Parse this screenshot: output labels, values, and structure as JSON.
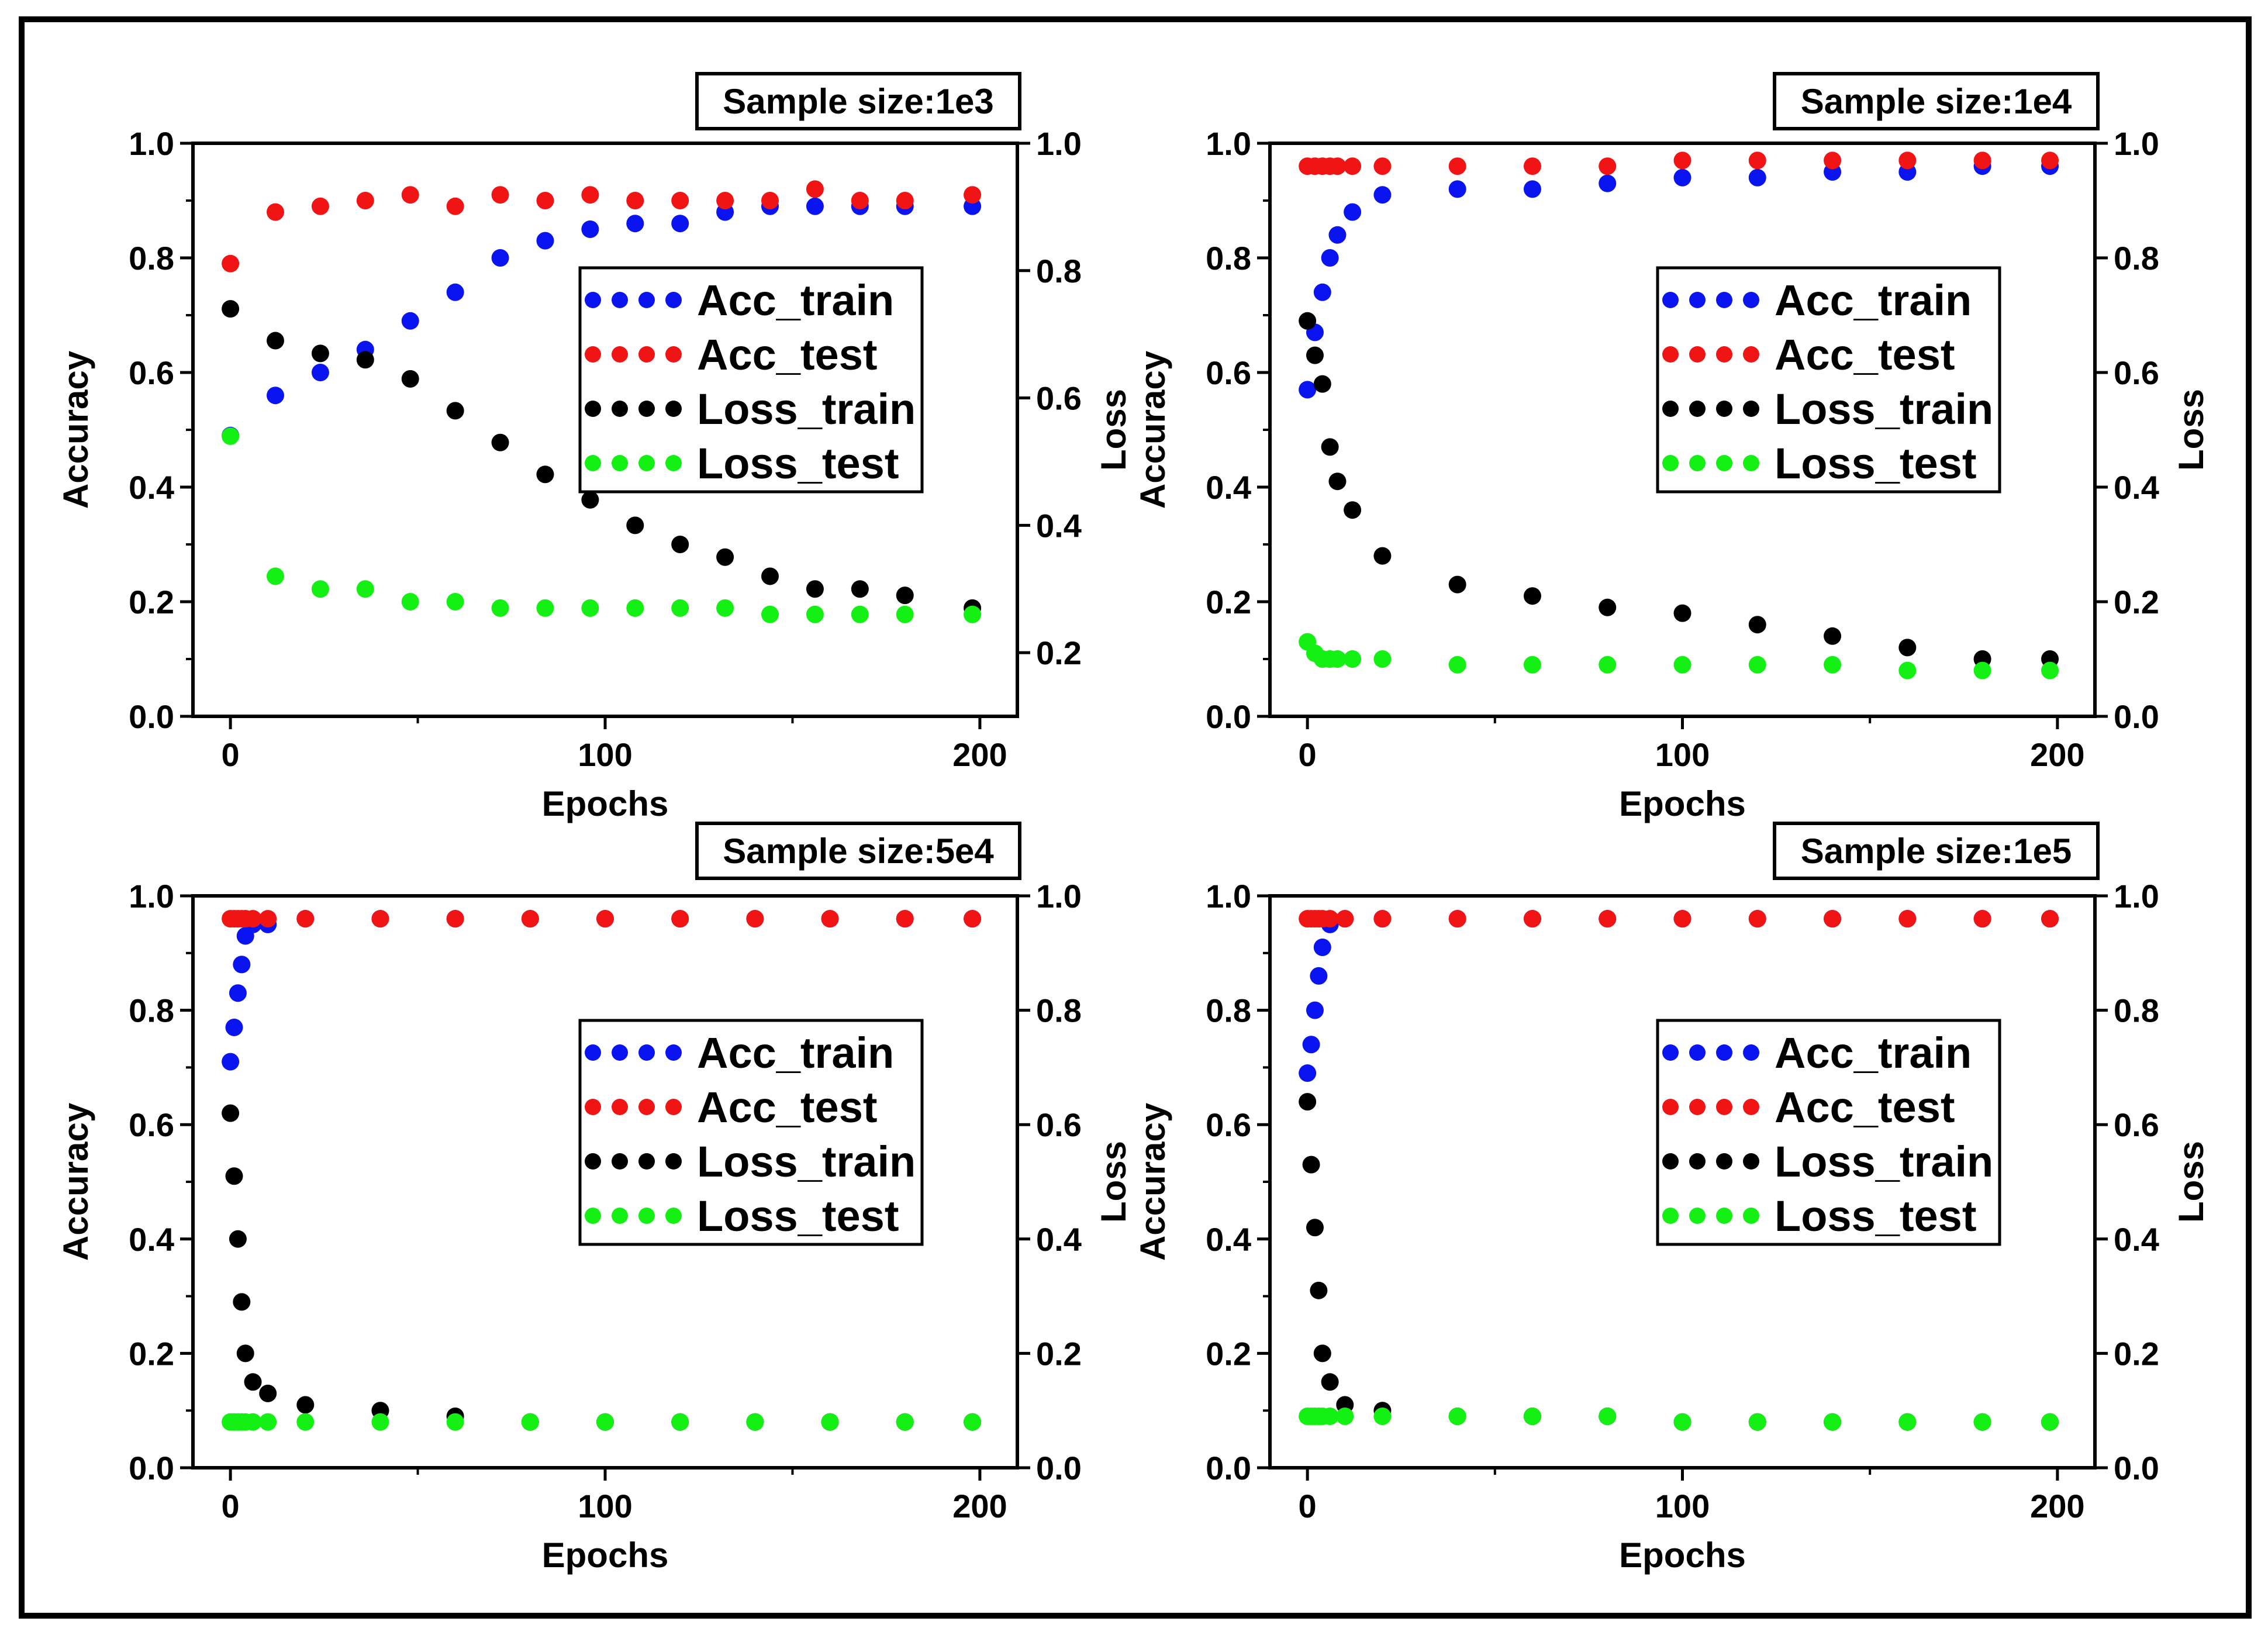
{
  "colors": {
    "acc_train": "#0a14f0",
    "acc_test": "#f01414",
    "loss_train": "#000000",
    "loss_test": "#14f014"
  },
  "chart_data": [
    {
      "type": "scatter",
      "title": "Sample size:1e3",
      "xlabel": "Epochs",
      "ylabel": "Accuracy",
      "y2label": "Loss",
      "xlim": [
        -10,
        210
      ],
      "ylim": [
        0,
        1.0
      ],
      "y2lim": [
        0.1,
        1.0
      ],
      "xticks": [
        0,
        100,
        200
      ],
      "yticks": [
        0.0,
        0.2,
        0.4,
        0.6,
        0.8,
        1.0
      ],
      "y2ticks": [
        0.2,
        0.4,
        0.6,
        0.8,
        1.0
      ],
      "xtick_labels": [
        "0",
        "100",
        "200"
      ],
      "ytick_labels": [
        "0.0",
        "0.2",
        "0.4",
        "0.6",
        "0.8",
        "1.0"
      ],
      "y2tick_labels": [
        "0.2",
        "0.4",
        "0.6",
        "0.8",
        "1.0"
      ],
      "legend_position": "center-right",
      "legend": [
        "Acc_train",
        "Acc_test",
        "Loss_train",
        "Loss_test"
      ],
      "x": [
        0,
        12,
        24,
        36,
        48,
        60,
        72,
        84,
        96,
        108,
        120,
        132,
        144,
        156,
        168,
        180,
        198
      ],
      "series": [
        {
          "name": "Acc_train",
          "axis": "left",
          "color_key": "acc_train",
          "values": [
            0.49,
            0.56,
            0.6,
            0.64,
            0.69,
            0.74,
            0.8,
            0.83,
            0.85,
            0.86,
            0.86,
            0.88,
            0.89,
            0.89,
            0.89,
            0.89,
            0.89
          ]
        },
        {
          "name": "Acc_test",
          "axis": "left",
          "color_key": "acc_test",
          "values": [
            0.79,
            0.88,
            0.89,
            0.9,
            0.91,
            0.89,
            0.91,
            0.9,
            0.91,
            0.9,
            0.9,
            0.9,
            0.9,
            0.92,
            0.9,
            0.9,
            0.91
          ]
        },
        {
          "name": "Loss_train",
          "axis": "right",
          "color_key": "loss_train",
          "values": [
            0.74,
            0.69,
            0.67,
            0.66,
            0.63,
            0.58,
            0.53,
            0.48,
            0.44,
            0.4,
            0.37,
            0.35,
            0.32,
            0.3,
            0.3,
            0.29,
            0.27
          ]
        },
        {
          "name": "Loss_test",
          "axis": "right",
          "color_key": "loss_test",
          "values": [
            0.54,
            0.32,
            0.3,
            0.3,
            0.28,
            0.28,
            0.27,
            0.27,
            0.27,
            0.27,
            0.27,
            0.27,
            0.26,
            0.26,
            0.26,
            0.26,
            0.26
          ]
        }
      ]
    },
    {
      "type": "scatter",
      "title": "Sample size:1e4",
      "xlabel": "Epochs",
      "ylabel": "Accuracy",
      "y2label": "Loss",
      "xlim": [
        -10,
        210
      ],
      "ylim": [
        0,
        1.0
      ],
      "y2lim": [
        0.0,
        1.0
      ],
      "xticks": [
        0,
        100,
        200
      ],
      "yticks": [
        0.0,
        0.2,
        0.4,
        0.6,
        0.8,
        1.0
      ],
      "y2ticks": [
        0.0,
        0.2,
        0.4,
        0.6,
        0.8,
        1.0
      ],
      "xtick_labels": [
        "0",
        "100",
        "200"
      ],
      "ytick_labels": [
        "0.0",
        "0.2",
        "0.4",
        "0.6",
        "0.8",
        "1.0"
      ],
      "y2tick_labels": [
        "0.0",
        "0.2",
        "0.4",
        "0.6",
        "0.8",
        "1.0"
      ],
      "legend_position": "center-right",
      "legend": [
        "Acc_train",
        "Acc_test",
        "Loss_train",
        "Loss_test"
      ],
      "x": [
        0,
        2,
        4,
        6,
        8,
        12,
        20,
        40,
        60,
        80,
        100,
        120,
        140,
        160,
        180,
        198
      ],
      "series": [
        {
          "name": "Acc_train",
          "axis": "left",
          "color_key": "acc_train",
          "values": [
            0.57,
            0.67,
            0.74,
            0.8,
            0.84,
            0.88,
            0.91,
            0.92,
            0.92,
            0.93,
            0.94,
            0.94,
            0.95,
            0.95,
            0.96,
            0.96
          ]
        },
        {
          "name": "Acc_test",
          "axis": "left",
          "color_key": "acc_test",
          "values": [
            0.96,
            0.96,
            0.96,
            0.96,
            0.96,
            0.96,
            0.96,
            0.96,
            0.96,
            0.96,
            0.97,
            0.97,
            0.97,
            0.97,
            0.97,
            0.97
          ]
        },
        {
          "name": "Loss_train",
          "axis": "right",
          "color_key": "loss_train",
          "values": [
            0.69,
            0.63,
            0.58,
            0.47,
            0.41,
            0.36,
            0.28,
            0.23,
            0.21,
            0.19,
            0.18,
            0.16,
            0.14,
            0.12,
            0.1,
            0.1
          ]
        },
        {
          "name": "Loss_test",
          "axis": "right",
          "color_key": "loss_test",
          "values": [
            0.13,
            0.11,
            0.1,
            0.1,
            0.1,
            0.1,
            0.1,
            0.09,
            0.09,
            0.09,
            0.09,
            0.09,
            0.09,
            0.08,
            0.08,
            0.08
          ]
        }
      ]
    },
    {
      "type": "scatter",
      "title": "Sample size:5e4",
      "xlabel": "Epochs",
      "ylabel": "Accuracy",
      "y2label": "Loss",
      "xlim": [
        -10,
        210
      ],
      "ylim": [
        0,
        1.0
      ],
      "y2lim": [
        0.0,
        1.0
      ],
      "xticks": [
        0,
        100,
        200
      ],
      "yticks": [
        0.0,
        0.2,
        0.4,
        0.6,
        0.8,
        1.0
      ],
      "y2ticks": [
        0.0,
        0.2,
        0.4,
        0.6,
        0.8,
        1.0
      ],
      "xtick_labels": [
        "0",
        "100",
        "200"
      ],
      "ytick_labels": [
        "0.0",
        "0.2",
        "0.4",
        "0.6",
        "0.8",
        "1.0"
      ],
      "y2tick_labels": [
        "0.0",
        "0.2",
        "0.4",
        "0.6",
        "0.8",
        "1.0"
      ],
      "legend_position": "center-right",
      "legend": [
        "Acc_train",
        "Acc_test",
        "Loss_train",
        "Loss_test"
      ],
      "x": [
        0,
        1,
        2,
        3,
        4,
        6,
        10,
        20,
        40,
        60,
        80,
        100,
        120,
        140,
        160,
        180,
        198
      ],
      "series": [
        {
          "name": "Acc_train",
          "axis": "left",
          "color_key": "acc_train",
          "values": [
            0.71,
            0.77,
            0.83,
            0.88,
            0.93,
            0.95,
            0.95,
            0.96,
            0.96,
            0.96,
            0.96,
            0.96,
            0.96,
            0.96,
            0.96,
            0.96,
            0.96
          ]
        },
        {
          "name": "Acc_test",
          "axis": "left",
          "color_key": "acc_test",
          "values": [
            0.96,
            0.96,
            0.96,
            0.96,
            0.96,
            0.96,
            0.96,
            0.96,
            0.96,
            0.96,
            0.96,
            0.96,
            0.96,
            0.96,
            0.96,
            0.96,
            0.96
          ]
        },
        {
          "name": "Loss_train",
          "axis": "right",
          "color_key": "loss_train",
          "values": [
            0.62,
            0.51,
            0.4,
            0.29,
            0.2,
            0.15,
            0.13,
            0.11,
            0.1,
            0.09,
            0.08,
            0.08,
            0.08,
            0.08,
            0.08,
            0.08,
            0.08
          ]
        },
        {
          "name": "Loss_test",
          "axis": "right",
          "color_key": "loss_test",
          "values": [
            0.08,
            0.08,
            0.08,
            0.08,
            0.08,
            0.08,
            0.08,
            0.08,
            0.08,
            0.08,
            0.08,
            0.08,
            0.08,
            0.08,
            0.08,
            0.08,
            0.08
          ]
        }
      ]
    },
    {
      "type": "scatter",
      "title": "Sample size:1e5",
      "xlabel": "Epochs",
      "ylabel": "Accuracy",
      "y2label": "Loss",
      "xlim": [
        -10,
        210
      ],
      "ylim": [
        0,
        1.0
      ],
      "y2lim": [
        0.0,
        1.0
      ],
      "xticks": [
        0,
        100,
        200
      ],
      "yticks": [
        0.0,
        0.2,
        0.4,
        0.6,
        0.8,
        1.0
      ],
      "y2ticks": [
        0.0,
        0.2,
        0.4,
        0.6,
        0.8,
        1.0
      ],
      "xtick_labels": [
        "0",
        "100",
        "200"
      ],
      "ytick_labels": [
        "0.0",
        "0.2",
        "0.4",
        "0.6",
        "0.8",
        "1.0"
      ],
      "y2tick_labels": [
        "0.0",
        "0.2",
        "0.4",
        "0.6",
        "0.8",
        "1.0"
      ],
      "legend_position": "center-right",
      "legend": [
        "Acc_train",
        "Acc_test",
        "Loss_train",
        "Loss_test"
      ],
      "x": [
        0,
        1,
        2,
        3,
        4,
        6,
        10,
        20,
        40,
        60,
        80,
        100,
        120,
        140,
        160,
        180,
        198
      ],
      "series": [
        {
          "name": "Acc_train",
          "axis": "left",
          "color_key": "acc_train",
          "values": [
            0.69,
            0.74,
            0.8,
            0.86,
            0.91,
            0.95,
            0.96,
            0.96,
            0.96,
            0.96,
            0.96,
            0.96,
            0.96,
            0.96,
            0.96,
            0.96,
            0.96
          ]
        },
        {
          "name": "Acc_test",
          "axis": "left",
          "color_key": "acc_test",
          "values": [
            0.96,
            0.96,
            0.96,
            0.96,
            0.96,
            0.96,
            0.96,
            0.96,
            0.96,
            0.96,
            0.96,
            0.96,
            0.96,
            0.96,
            0.96,
            0.96,
            0.96
          ]
        },
        {
          "name": "Loss_train",
          "axis": "right",
          "color_key": "loss_train",
          "values": [
            0.64,
            0.53,
            0.42,
            0.31,
            0.2,
            0.15,
            0.11,
            0.1,
            0.09,
            0.09,
            0.09,
            0.08,
            0.08,
            0.08,
            0.08,
            0.08,
            0.08
          ]
        },
        {
          "name": "Loss_test",
          "axis": "right",
          "color_key": "loss_test",
          "values": [
            0.09,
            0.09,
            0.09,
            0.09,
            0.09,
            0.09,
            0.09,
            0.09,
            0.09,
            0.09,
            0.09,
            0.08,
            0.08,
            0.08,
            0.08,
            0.08,
            0.08
          ]
        }
      ]
    }
  ]
}
